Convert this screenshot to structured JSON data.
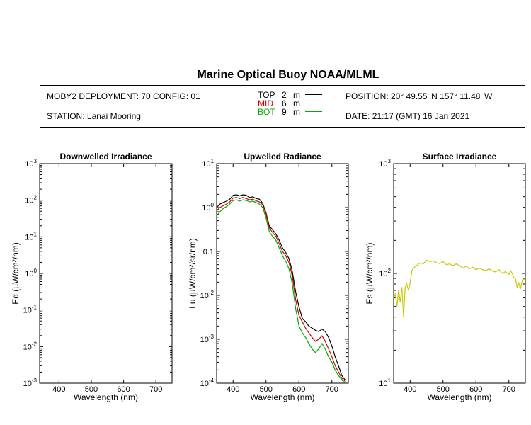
{
  "header": {
    "title": "Marine Optical Buoy NOAA/MLML",
    "deployment": "MOBY2 DEPLOYMENT: 70 CONFIG: 01",
    "station": "STATION: Lanai Mooring",
    "position": "POSITION: 20° 49.55' N   157° 11.48' W",
    "date": "DATE: 21:17 (GMT) 16 Jan 2021",
    "depths": [
      {
        "label": "TOP",
        "depth": "2",
        "unit": "m",
        "color": "#000000"
      },
      {
        "label": "MID",
        "depth": "6",
        "unit": "m",
        "color": "#cc0000"
      },
      {
        "label": "BOT",
        "depth": "9",
        "unit": "m",
        "color": "#00aa00"
      }
    ]
  },
  "chart_data": [
    {
      "type": "line",
      "title": "Downwelled Irradiance",
      "xlabel": "Wavelength (nm)",
      "ylabel": "Ed  (µW/cm²/nm)",
      "xlim": [
        340,
        750
      ],
      "xticks": [
        400,
        500,
        600,
        700
      ],
      "yscale": "log",
      "ylim": [
        0.001,
        1000
      ],
      "yticks": [
        {
          "exp": "3"
        },
        {
          "exp": "2"
        },
        {
          "exp": "1"
        },
        {
          "exp": "0"
        },
        {
          "exp": "-1"
        },
        {
          "exp": "-2"
        },
        {
          "exp": "-3"
        }
      ],
      "series": []
    },
    {
      "type": "line",
      "title": "Upwelled Radiance",
      "xlabel": "Wavelength (nm)",
      "ylabel": "Lu  (µW/cm²/sr/nm)",
      "xlim": [
        350,
        750
      ],
      "xticks": [
        400,
        500,
        600,
        700
      ],
      "yscale": "log",
      "ylim": [
        0.0001,
        10
      ],
      "yticks": [
        {
          "mant": "10",
          "exp": "1"
        },
        {
          "mant": "10",
          "exp": "0"
        },
        {
          "mant": "0.1",
          "exp": ""
        },
        {
          "mant": "10",
          "exp": "-2"
        },
        {
          "mant": "10",
          "exp": "-3"
        },
        {
          "mant": "10",
          "exp": "-4"
        }
      ],
      "series": [
        {
          "name": "TOP",
          "color": "#000000",
          "x": [
            350,
            360,
            370,
            380,
            390,
            400,
            410,
            420,
            430,
            440,
            450,
            460,
            470,
            480,
            490,
            500,
            510,
            520,
            530,
            540,
            550,
            560,
            570,
            580,
            590,
            600,
            610,
            620,
            630,
            640,
            650,
            660,
            670,
            680,
            690,
            700,
            710,
            720,
            730,
            740
          ],
          "y": [
            1.0,
            1.2,
            1.3,
            1.4,
            1.55,
            1.9,
            1.95,
            1.85,
            1.95,
            1.9,
            1.7,
            1.75,
            1.6,
            1.55,
            1.25,
            0.75,
            0.38,
            0.31,
            0.25,
            0.18,
            0.12,
            0.095,
            0.068,
            0.035,
            0.012,
            0.0055,
            0.003,
            0.0025,
            0.002,
            0.0018,
            0.0016,
            0.0015,
            0.0017,
            0.0015,
            0.0011,
            0.0007,
            0.0004,
            0.00025,
            0.00015,
            0.00012
          ]
        },
        {
          "name": "MID",
          "color": "#cc0000",
          "x": [
            350,
            360,
            370,
            380,
            390,
            400,
            410,
            420,
            430,
            440,
            450,
            460,
            470,
            480,
            490,
            500,
            510,
            520,
            530,
            540,
            550,
            560,
            570,
            580,
            590,
            600,
            610,
            620,
            630,
            640,
            650,
            660,
            670,
            680,
            690,
            700,
            710,
            720,
            730,
            740
          ],
          "y": [
            0.85,
            1.0,
            1.1,
            1.2,
            1.35,
            1.65,
            1.7,
            1.6,
            1.7,
            1.6,
            1.5,
            1.55,
            1.42,
            1.35,
            1.15,
            0.7,
            0.34,
            0.27,
            0.22,
            0.15,
            0.1,
            0.08,
            0.055,
            0.027,
            0.008,
            0.0035,
            0.0025,
            0.0018,
            0.0014,
            0.0011,
            0.0009,
            0.001,
            0.0012,
            0.0009,
            0.0006,
            0.0004,
            0.00025,
            0.00018,
            0.00013,
            0.00011
          ]
        },
        {
          "name": "BOT",
          "color": "#00aa00",
          "x": [
            350,
            360,
            370,
            380,
            390,
            400,
            410,
            420,
            430,
            440,
            450,
            460,
            470,
            480,
            490,
            500,
            510,
            520,
            530,
            540,
            550,
            560,
            570,
            580,
            590,
            600,
            610,
            620,
            630,
            640,
            650,
            660,
            670,
            680,
            690,
            700,
            710,
            720,
            730,
            740
          ],
          "y": [
            0.65,
            0.8,
            0.95,
            1.05,
            1.2,
            1.45,
            1.5,
            1.4,
            1.5,
            1.45,
            1.35,
            1.4,
            1.3,
            1.2,
            1.0,
            0.58,
            0.28,
            0.22,
            0.18,
            0.12,
            0.08,
            0.06,
            0.04,
            0.018,
            0.005,
            0.002,
            0.0014,
            0.0011,
            0.0008,
            0.0006,
            0.0005,
            0.0006,
            0.0008,
            0.0006,
            0.0004,
            0.0003,
            0.0002,
            0.00015,
            0.00012,
            0.0001
          ]
        }
      ]
    },
    {
      "type": "line",
      "title": "Surface Irradiance",
      "xlabel": "Wavelength (nm)",
      "ylabel": "Es  (µW/cm²/nm)",
      "xlim": [
        350,
        750
      ],
      "xticks": [
        400,
        500,
        600,
        700
      ],
      "yscale": "log",
      "ylim": [
        10,
        1000
      ],
      "yticks": [
        {
          "exp": "3"
        },
        {
          "exp": "2"
        },
        {
          "exp": "1"
        }
      ],
      "series": [
        {
          "name": "Es",
          "color": "#c8c800",
          "x": [
            350,
            355,
            360,
            365,
            370,
            375,
            380,
            385,
            390,
            395,
            400,
            405,
            410,
            420,
            430,
            440,
            450,
            460,
            470,
            480,
            490,
            500,
            510,
            520,
            530,
            540,
            550,
            560,
            570,
            580,
            590,
            600,
            610,
            620,
            630,
            640,
            650,
            660,
            670,
            680,
            690,
            700,
            705,
            710,
            715,
            720,
            725,
            730,
            735,
            740,
            745,
            750
          ],
          "y": [
            60,
            65,
            50,
            70,
            55,
            75,
            40,
            75,
            80,
            70,
            82,
            105,
            112,
            118,
            125,
            122,
            132,
            128,
            130,
            125,
            123,
            128,
            120,
            122,
            118,
            122,
            118,
            112,
            116,
            110,
            114,
            108,
            112,
            108,
            106,
            110,
            105,
            103,
            108,
            100,
            104,
            98,
            106,
            100,
            92,
            90,
            75,
            82,
            72,
            85,
            88,
            90
          ]
        }
      ]
    }
  ]
}
